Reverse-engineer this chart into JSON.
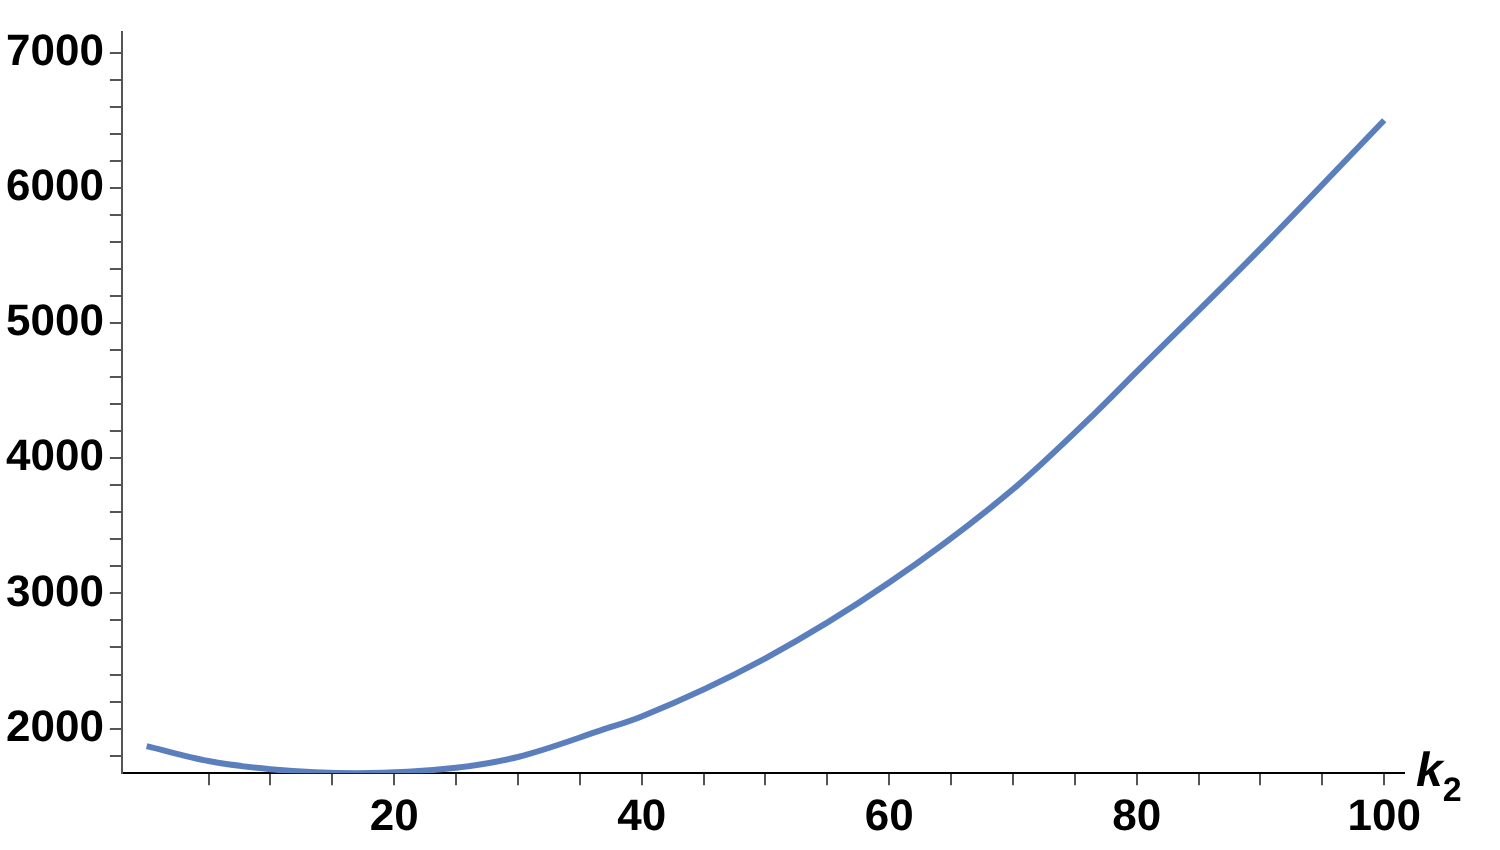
{
  "chart_data": {
    "type": "line",
    "xlabel": "k$_{2}$",
    "x": [
      0,
      5,
      10,
      17,
      25,
      30,
      36.8,
      40,
      50,
      60,
      70,
      76.6,
      80,
      90,
      100
    ],
    "series": [
      {
        "color": "#5b7fbd",
        "values": [
          1870,
          1760,
          1700,
          1670,
          1710,
          1790,
          1990,
          2090,
          2520,
          3080,
          3770,
          4330,
          4640,
          5550,
          6500
        ]
      }
    ],
    "xlim": [
      -2,
      101.6
    ],
    "ylim": [
      1670,
      7150
    ],
    "xticks": [
      {
        "value": 5,
        "label": null
      },
      {
        "value": 10,
        "label": null
      },
      {
        "value": 15,
        "label": null
      },
      20,
      {
        "value": 25,
        "label": null
      },
      {
        "value": 30,
        "label": null
      },
      {
        "value": 35,
        "label": null
      },
      40,
      {
        "value": 45,
        "label": null
      },
      {
        "value": 50,
        "label": null
      },
      {
        "value": 55,
        "label": null
      },
      60,
      {
        "value": 65,
        "label": null
      },
      {
        "value": 70,
        "label": null
      },
      {
        "value": 75,
        "label": null
      },
      80,
      {
        "value": 85,
        "label": null
      },
      {
        "value": 90,
        "label": null
      },
      {
        "value": 95,
        "label": null
      },
      100
    ],
    "yticks": [
      {
        "value": 1800,
        "label": null
      },
      2000,
      {
        "value": 2200,
        "label": null
      },
      {
        "value": 2400,
        "label": null
      },
      {
        "value": 2600,
        "label": null
      },
      {
        "value": 2800,
        "label": null
      },
      3000,
      {
        "value": 3200,
        "label": null
      },
      {
        "value": 3400,
        "label": null
      },
      {
        "value": 3600,
        "label": null
      },
      {
        "value": 3800,
        "label": null
      },
      4000,
      {
        "value": 4200,
        "label": null
      },
      {
        "value": 4400,
        "label": null
      },
      {
        "value": 4600,
        "label": null
      },
      {
        "value": 4800,
        "label": null
      },
      5000,
      {
        "value": 5200,
        "label": null
      },
      {
        "value": 5400,
        "label": null
      },
      {
        "value": 5600,
        "label": null
      },
      {
        "value": 5800,
        "label": null
      },
      6000,
      {
        "value": 6200,
        "label": null
      },
      {
        "value": 6400,
        "label": null
      },
      {
        "value": 6600,
        "label": null
      },
      {
        "value": 6800,
        "label": null
      },
      7000
    ],
    "grid": false,
    "legend": false,
    "marker": "none",
    "line_style": "solid"
  }
}
